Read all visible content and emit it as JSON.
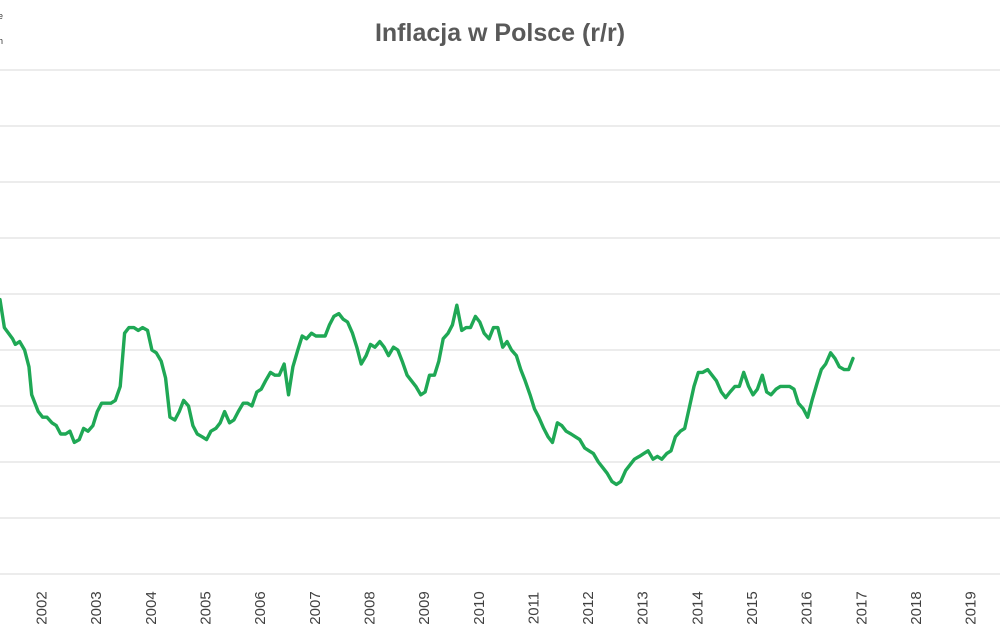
{
  "chart_data": {
    "type": "line",
    "title": "Inflacja w Polsce (r/r)",
    "xlabel": "",
    "ylabel": "",
    "grid": true,
    "gridlines_y": [
      -3,
      -2,
      -1,
      0,
      1,
      2,
      3,
      4,
      5,
      6
    ],
    "ylim": [
      -3,
      6
    ],
    "xlim": [
      2001.72,
      2020.02
    ],
    "x_ticks": [
      "2002",
      "2003",
      "2004",
      "2005",
      "2006",
      "2007",
      "2008",
      "2009",
      "2010",
      "2011",
      "2012",
      "2013",
      "2014",
      "2015",
      "2016",
      "2017",
      "2018",
      "2019"
    ],
    "legend": {
      "position": "top-left",
      "entries": [
        "e",
        "h"
      ]
    },
    "colors": {
      "series": "#1fa855",
      "grid": "#d9d9d9",
      "title": "#595959",
      "tick_text": "#404040"
    },
    "series": [
      {
        "name": "",
        "points": [
          [
            2001.72,
            1.9
          ],
          [
            2001.8,
            1.4
          ],
          [
            2001.95,
            1.2
          ],
          [
            2002.0,
            1.1
          ],
          [
            2002.08,
            1.15
          ],
          [
            2002.17,
            1.0
          ],
          [
            2002.25,
            0.7
          ],
          [
            2002.3,
            0.2
          ],
          [
            2002.42,
            -0.1
          ],
          [
            2002.5,
            -0.2
          ],
          [
            2002.58,
            -0.2
          ],
          [
            2002.67,
            -0.3
          ],
          [
            2002.75,
            -0.35
          ],
          [
            2002.83,
            -0.5
          ],
          [
            2002.92,
            -0.5
          ],
          [
            2003.0,
            -0.45
          ],
          [
            2003.08,
            -0.65
          ],
          [
            2003.17,
            -0.6
          ],
          [
            2003.25,
            -0.4
          ],
          [
            2003.33,
            -0.45
          ],
          [
            2003.42,
            -0.35
          ],
          [
            2003.5,
            -0.1
          ],
          [
            2003.58,
            0.05
          ],
          [
            2003.67,
            0.05
          ],
          [
            2003.75,
            0.05
          ],
          [
            2003.83,
            0.1
          ],
          [
            2003.92,
            0.35
          ],
          [
            2004.0,
            1.3
          ],
          [
            2004.08,
            1.4
          ],
          [
            2004.17,
            1.4
          ],
          [
            2004.25,
            1.35
          ],
          [
            2004.33,
            1.4
          ],
          [
            2004.42,
            1.35
          ],
          [
            2004.5,
            1.0
          ],
          [
            2004.58,
            0.95
          ],
          [
            2004.67,
            0.8
          ],
          [
            2004.75,
            0.5
          ],
          [
            2004.83,
            -0.2
          ],
          [
            2004.92,
            -0.25
          ],
          [
            2005.0,
            -0.1
          ],
          [
            2005.08,
            0.1
          ],
          [
            2005.17,
            0.0
          ],
          [
            2005.25,
            -0.35
          ],
          [
            2005.33,
            -0.5
          ],
          [
            2005.42,
            -0.55
          ],
          [
            2005.5,
            -0.6
          ],
          [
            2005.58,
            -0.45
          ],
          [
            2005.67,
            -0.4
          ],
          [
            2005.75,
            -0.3
          ],
          [
            2005.83,
            -0.1
          ],
          [
            2005.92,
            -0.3
          ],
          [
            2006.0,
            -0.25
          ],
          [
            2006.08,
            -0.1
          ],
          [
            2006.17,
            0.05
          ],
          [
            2006.25,
            0.05
          ],
          [
            2006.33,
            0.0
          ],
          [
            2006.42,
            0.25
          ],
          [
            2006.5,
            0.3
          ],
          [
            2006.58,
            0.45
          ],
          [
            2006.67,
            0.6
          ],
          [
            2006.75,
            0.55
          ],
          [
            2006.83,
            0.55
          ],
          [
            2006.92,
            0.75
          ],
          [
            2007.0,
            0.2
          ],
          [
            2007.08,
            0.7
          ],
          [
            2007.17,
            1.0
          ],
          [
            2007.25,
            1.25
          ],
          [
            2007.33,
            1.2
          ],
          [
            2007.42,
            1.3
          ],
          [
            2007.5,
            1.25
          ],
          [
            2007.58,
            1.25
          ],
          [
            2007.67,
            1.25
          ],
          [
            2007.75,
            1.45
          ],
          [
            2007.83,
            1.6
          ],
          [
            2007.92,
            1.65
          ],
          [
            2008.0,
            1.55
          ],
          [
            2008.08,
            1.5
          ],
          [
            2008.17,
            1.3
          ],
          [
            2008.25,
            1.05
          ],
          [
            2008.33,
            0.75
          ],
          [
            2008.42,
            0.9
          ],
          [
            2008.5,
            1.1
          ],
          [
            2008.58,
            1.05
          ],
          [
            2008.67,
            1.15
          ],
          [
            2008.75,
            1.05
          ],
          [
            2008.83,
            0.9
          ],
          [
            2008.92,
            1.05
          ],
          [
            2009.0,
            1.0
          ],
          [
            2009.08,
            0.8
          ],
          [
            2009.17,
            0.55
          ],
          [
            2009.25,
            0.45
          ],
          [
            2009.33,
            0.35
          ],
          [
            2009.42,
            0.2
          ],
          [
            2009.5,
            0.25
          ],
          [
            2009.58,
            0.55
          ],
          [
            2009.67,
            0.55
          ],
          [
            2009.75,
            0.8
          ],
          [
            2009.83,
            1.2
          ],
          [
            2009.92,
            1.3
          ],
          [
            2010.0,
            1.45
          ],
          [
            2010.08,
            1.8
          ],
          [
            2010.17,
            1.35
          ],
          [
            2010.25,
            1.4
          ],
          [
            2010.33,
            1.4
          ],
          [
            2010.42,
            1.6
          ],
          [
            2010.5,
            1.5
          ],
          [
            2010.58,
            1.3
          ],
          [
            2010.67,
            1.2
          ],
          [
            2010.75,
            1.4
          ],
          [
            2010.83,
            1.4
          ],
          [
            2010.92,
            1.05
          ],
          [
            2011.0,
            1.15
          ],
          [
            2011.08,
            1.0
          ],
          [
            2011.17,
            0.9
          ],
          [
            2011.25,
            0.65
          ],
          [
            2011.33,
            0.45
          ],
          [
            2011.42,
            0.2
          ],
          [
            2011.5,
            -0.05
          ],
          [
            2011.58,
            -0.2
          ],
          [
            2011.67,
            -0.4
          ],
          [
            2011.75,
            -0.55
          ],
          [
            2011.83,
            -0.65
          ],
          [
            2011.92,
            -0.3
          ],
          [
            2012.0,
            -0.35
          ],
          [
            2012.08,
            -0.45
          ],
          [
            2012.17,
            -0.5
          ],
          [
            2012.25,
            -0.55
          ],
          [
            2012.33,
            -0.6
          ],
          [
            2012.42,
            -0.75
          ],
          [
            2012.5,
            -0.8
          ],
          [
            2012.58,
            -0.85
          ],
          [
            2012.67,
            -1.0
          ],
          [
            2012.75,
            -1.1
          ],
          [
            2012.83,
            -1.2
          ],
          [
            2012.92,
            -1.35
          ],
          [
            2013.0,
            -1.4
          ],
          [
            2013.08,
            -1.35
          ],
          [
            2013.17,
            -1.15
          ],
          [
            2013.25,
            -1.05
          ],
          [
            2013.33,
            -0.95
          ],
          [
            2013.42,
            -0.9
          ],
          [
            2013.5,
            -0.85
          ],
          [
            2013.58,
            -0.8
          ],
          [
            2013.67,
            -0.95
          ],
          [
            2013.75,
            -0.9
          ],
          [
            2013.83,
            -0.95
          ],
          [
            2013.92,
            -0.85
          ],
          [
            2014.0,
            -0.8
          ],
          [
            2014.08,
            -0.55
          ],
          [
            2014.17,
            -0.45
          ],
          [
            2014.25,
            -0.4
          ],
          [
            2014.33,
            -0.05
          ],
          [
            2014.42,
            0.35
          ],
          [
            2014.5,
            0.6
          ],
          [
            2014.58,
            0.6
          ],
          [
            2014.67,
            0.65
          ],
          [
            2014.75,
            0.55
          ],
          [
            2014.83,
            0.45
          ],
          [
            2014.92,
            0.25
          ],
          [
            2015.0,
            0.15
          ],
          [
            2015.08,
            0.25
          ],
          [
            2015.17,
            0.35
          ],
          [
            2015.25,
            0.35
          ],
          [
            2015.33,
            0.6
          ],
          [
            2015.42,
            0.35
          ],
          [
            2015.5,
            0.2
          ],
          [
            2015.58,
            0.3
          ],
          [
            2015.67,
            0.55
          ],
          [
            2015.75,
            0.25
          ],
          [
            2015.83,
            0.2
          ],
          [
            2015.92,
            0.3
          ],
          [
            2016.0,
            0.35
          ],
          [
            2016.08,
            0.35
          ],
          [
            2016.17,
            0.35
          ],
          [
            2016.25,
            0.3
          ],
          [
            2016.33,
            0.05
          ],
          [
            2016.42,
            -0.05
          ],
          [
            2016.5,
            -0.2
          ],
          [
            2016.58,
            0.1
          ],
          [
            2016.67,
            0.4
          ],
          [
            2016.75,
            0.65
          ],
          [
            2016.83,
            0.75
          ],
          [
            2016.92,
            0.95
          ],
          [
            2017.0,
            0.85
          ],
          [
            2017.08,
            0.7
          ],
          [
            2017.17,
            0.65
          ],
          [
            2017.25,
            0.65
          ],
          [
            2017.33,
            0.85
          ]
        ]
      }
    ]
  }
}
